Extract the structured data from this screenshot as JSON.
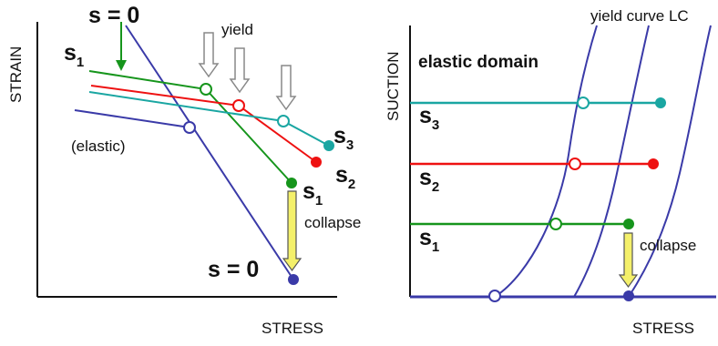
{
  "left_panel": {
    "y_axis_label": "STRAIN",
    "x_axis_label": "STRESS",
    "s_zero_top": "s = 0",
    "s_zero_bottom": "s = 0",
    "yield_label": "yield",
    "elastic_label": "(elastic)",
    "collapse_label": "collapse",
    "s1_left": {
      "base": "s",
      "sub": "1"
    },
    "s1_right": {
      "base": "s",
      "sub": "1"
    },
    "s2": {
      "base": "s",
      "sub": "2"
    },
    "s3": {
      "base": "s",
      "sub": "3"
    }
  },
  "right_panel": {
    "y_axis_label": "SUCTION",
    "x_axis_label": "STRESS",
    "yield_curve_label": "yield curve LC",
    "domain_label": "elastic domain",
    "collapse_label": "collapse",
    "s1": {
      "base": "s",
      "sub": "1"
    },
    "s2": {
      "base": "s",
      "sub": "2"
    },
    "s3": {
      "base": "s",
      "sub": "3"
    }
  },
  "colors": {
    "s0": "#3a3aa8",
    "s1": "#16951c",
    "s2": "#ee1111",
    "s3": "#1aa6a2",
    "arrow_fill": "#f4f06a",
    "axis": "#111111"
  }
}
